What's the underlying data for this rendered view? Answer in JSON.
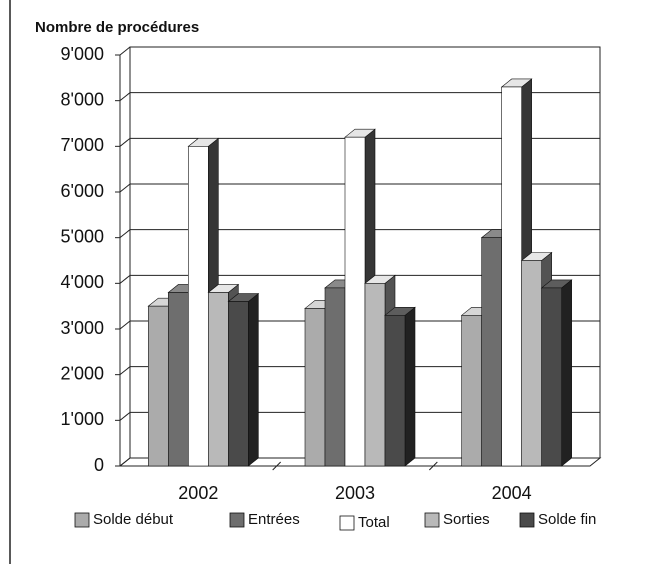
{
  "chart_data": {
    "type": "bar3d",
    "title": "Nombre de procédures",
    "categories": [
      "2002",
      "2003",
      "2004"
    ],
    "series": [
      {
        "name": "Solde début",
        "color": "#ababab",
        "values": [
          3500,
          3450,
          3300
        ]
      },
      {
        "name": "Entrées",
        "color": "#6e6e6e",
        "values": [
          3800,
          3900,
          5000
        ]
      },
      {
        "name": "Total",
        "color": "#ffffff",
        "values": [
          7000,
          7200,
          8300
        ]
      },
      {
        "name": "Sorties",
        "color": "#b9b9b9",
        "values": [
          3800,
          4000,
          4500
        ]
      },
      {
        "name": "Solde fin",
        "color": "#4a4a4a",
        "values": [
          3600,
          3300,
          3900
        ]
      }
    ],
    "ylim": [
      0,
      9000
    ],
    "yticks": [
      0,
      {
        "value": 1000,
        "label": "1'000"
      },
      {
        "value": 2000,
        "label": "2'000"
      },
      {
        "value": 3000,
        "label": "3'000"
      },
      {
        "value": 4000,
        "label": "4'000"
      },
      {
        "value": 5000,
        "label": "5'000"
      },
      {
        "value": 6000,
        "label": "6'000"
      },
      {
        "value": 7000,
        "label": "7'000"
      },
      {
        "value": 8000,
        "label": "8'000"
      },
      {
        "value": 9000,
        "label": "9'000"
      }
    ],
    "grid": true
  }
}
